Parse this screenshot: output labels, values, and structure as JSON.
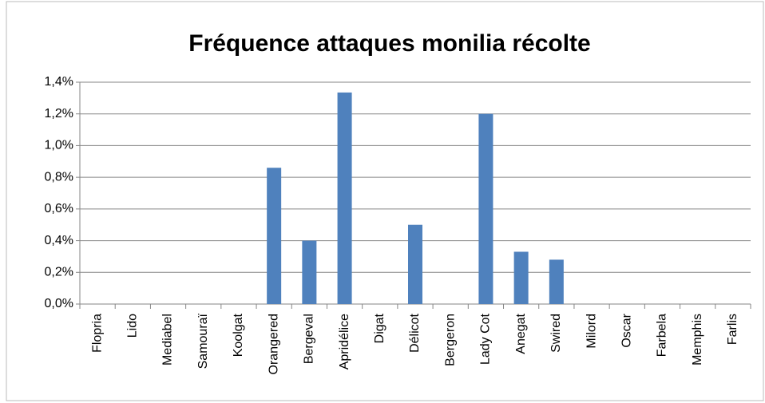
{
  "chart_data": {
    "type": "bar",
    "title": "Fréquence attaques monilia récolte",
    "categories": [
      "Flopria",
      "Lido",
      "Mediabel",
      "Samouraï",
      "Koolgat",
      "Orangered",
      "Bergeval",
      "Apridélice",
      "Digat",
      "Délicot",
      "Bergeron",
      "Lady Cot",
      "Anegat",
      "Swired",
      "Milord",
      "Oscar",
      "Farbela",
      "Memphis",
      "Farlis"
    ],
    "values": [
      0,
      0,
      0,
      0,
      0,
      0.86,
      0.4,
      1.335,
      0,
      0.5,
      0,
      1.2,
      0.33,
      0.28,
      0,
      0,
      0,
      0,
      0
    ],
    "color": "#4f81bd",
    "ylim": [
      0,
      1.4
    ],
    "yticks": [
      {
        "value": 0,
        "label": "0,0%"
      },
      {
        "value": 0.2,
        "label": "0,2%"
      },
      {
        "value": 0.4,
        "label": "0,4%"
      },
      {
        "value": 0.6,
        "label": "0,6%"
      },
      {
        "value": 0.8,
        "label": "0,8%"
      },
      {
        "value": 1.0,
        "label": "1,0%"
      },
      {
        "value": 1.2,
        "label": "1,2%"
      },
      {
        "value": 1.4,
        "label": "1,4%"
      }
    ],
    "grid": true
  }
}
